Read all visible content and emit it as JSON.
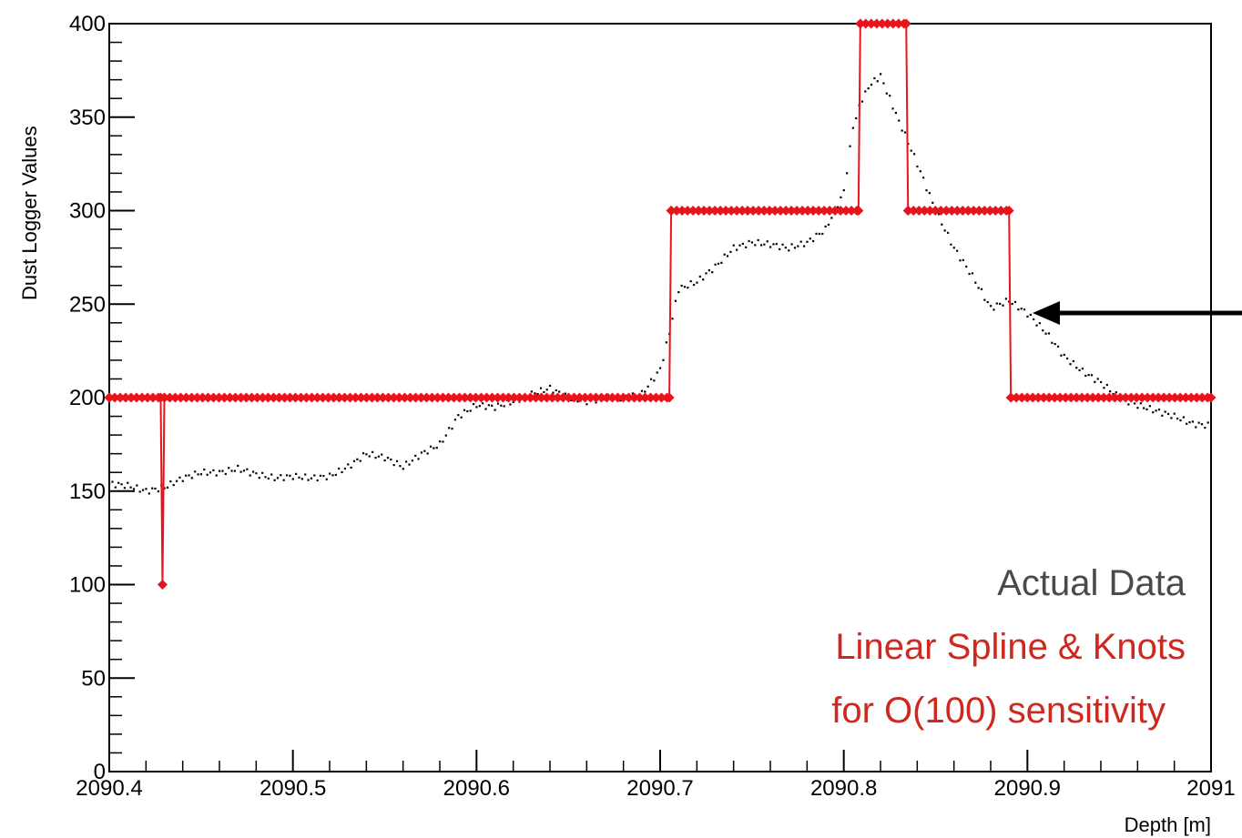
{
  "chart_data": {
    "type": "line",
    "xlabel": "Depth [m]",
    "ylabel": "Dust Logger Values",
    "xlim": [
      2090.4,
      2091.0
    ],
    "ylim": [
      0,
      400
    ],
    "x_ticks": [
      "2090.4",
      "2090.5",
      "2090.6",
      "2090.7",
      "2090.8",
      "2090.9",
      "2091"
    ],
    "y_ticks": [
      "0",
      "50",
      "100",
      "150",
      "200",
      "250",
      "300",
      "350",
      "400"
    ],
    "annotations": [
      "Actual Data",
      "Linear Spline & Knots",
      "for O(100) sensitivity"
    ],
    "arrow_target": {
      "x": 2090.905,
      "y": 246
    },
    "colors": {
      "data": "#000000",
      "spline": "#e8131b",
      "legend_data": "#4a4a4a",
      "legend_spline": "#d0281e"
    },
    "series": [
      {
        "style": "dotted-markers",
        "color": "#000000",
        "x": [
          2090.4,
          2090.41,
          2090.42,
          2090.43,
          2090.44,
          2090.45,
          2090.46,
          2090.47,
          2090.48,
          2090.49,
          2090.5,
          2090.51,
          2090.52,
          2090.53,
          2090.54,
          2090.55,
          2090.56,
          2090.57,
          2090.58,
          2090.59,
          2090.6,
          2090.61,
          2090.62,
          2090.63,
          2090.64,
          2090.65,
          2090.66,
          2090.67,
          2090.68,
          2090.69,
          2090.7,
          2090.705,
          2090.71,
          2090.72,
          2090.73,
          2090.74,
          2090.75,
          2090.76,
          2090.77,
          2090.78,
          2090.79,
          2090.8,
          2090.805,
          2090.81,
          2090.815,
          2090.82,
          2090.825,
          2090.83,
          2090.84,
          2090.85,
          2090.86,
          2090.87,
          2090.88,
          2090.89,
          2090.9,
          2090.91,
          2090.92,
          2090.93,
          2090.94,
          2090.95,
          2090.96,
          2090.97,
          2090.98,
          2090.99,
          2091.0
        ],
        "y": [
          154,
          153,
          150,
          152,
          157,
          160,
          160,
          162,
          159,
          157,
          158,
          157,
          158,
          163,
          170,
          168,
          163,
          170,
          175,
          190,
          196,
          195,
          198,
          202,
          205,
          200,
          198,
          200,
          200,
          202,
          215,
          235,
          258,
          262,
          270,
          280,
          283,
          282,
          280,
          283,
          290,
          310,
          345,
          360,
          368,
          372,
          360,
          348,
          325,
          300,
          280,
          265,
          248,
          252,
          245,
          235,
          222,
          214,
          208,
          200,
          196,
          193,
          190,
          186,
          185
        ]
      },
      {
        "style": "line-with-diamond-knots",
        "color": "#e8131b",
        "x": [
          2090.4,
          2090.428,
          2090.429,
          2090.43,
          2090.705,
          2090.706,
          2090.808,
          2090.809,
          2090.834,
          2090.835,
          2090.89,
          2090.891,
          2091.0
        ],
        "y": [
          200,
          200,
          100,
          200,
          200,
          300,
          300,
          400,
          400,
          300,
          300,
          200,
          200
        ]
      }
    ]
  }
}
